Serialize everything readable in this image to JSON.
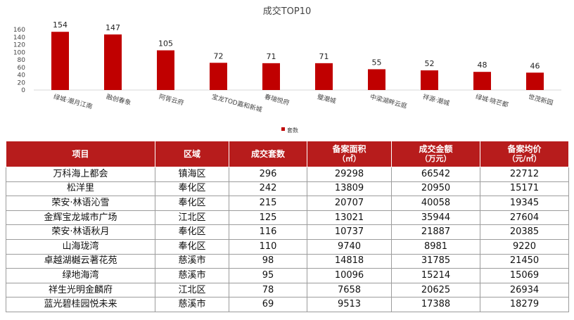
{
  "chart_data": {
    "type": "bar",
    "title": "成交TOP10",
    "categories": [
      "绿城·潮月江南",
      "融创春象",
      "阿胥云府",
      "宝龙TOD嘉和新城",
      "春瑞悦府",
      "璧潮城",
      "中梁湖畔云庭",
      "祥源·潮城",
      "绿城·晓芒都",
      "世茂新园"
    ],
    "series": [
      {
        "name": "套数",
        "values": [
          154,
          147,
          105,
          72,
          71,
          71,
          55,
          52,
          48,
          46
        ]
      }
    ],
    "ylim": [
      0,
      160
    ],
    "yticks": [
      0,
      20,
      40,
      60,
      80,
      100,
      120,
      140,
      160
    ],
    "legend": "bottom",
    "grid": false,
    "color": "#c00000"
  },
  "table": {
    "headers": [
      {
        "main": "项目",
        "sub": ""
      },
      {
        "main": "区域",
        "sub": ""
      },
      {
        "main": "成交套数",
        "sub": ""
      },
      {
        "main": "备案面积",
        "sub": "（㎡）"
      },
      {
        "main": "成交金额",
        "sub": "（万元）"
      },
      {
        "main": "备案均价",
        "sub": "（元/㎡）"
      }
    ],
    "rows": [
      [
        "万科海上都会",
        "镇海区",
        "296",
        "29298",
        "66542",
        "22712"
      ],
      [
        "松洋里",
        "奉化区",
        "242",
        "13809",
        "20950",
        "15171"
      ],
      [
        "荣安·林语沁雪",
        "奉化区",
        "215",
        "20707",
        "40058",
        "19345"
      ],
      [
        "金辉宝龙城市广场",
        "江北区",
        "125",
        "13021",
        "35944",
        "27604"
      ],
      [
        "荣安·林语秋月",
        "奉化区",
        "116",
        "10737",
        "21887",
        "20385"
      ],
      [
        "山海珑湾",
        "奉化区",
        "110",
        "9740",
        "8981",
        "9220"
      ],
      [
        "卓越湖樾云著花苑",
        "慈溪市",
        "98",
        "14818",
        "31785",
        "21450"
      ],
      [
        "绿地海湾",
        "慈溪市",
        "95",
        "10096",
        "15214",
        "15069"
      ],
      [
        "祥生光明金麟府",
        "江北区",
        "78",
        "7658",
        "20625",
        "26934"
      ],
      [
        "蓝光碧桂园悦未来",
        "慈溪市",
        "69",
        "9513",
        "17388",
        "18279"
      ]
    ]
  }
}
